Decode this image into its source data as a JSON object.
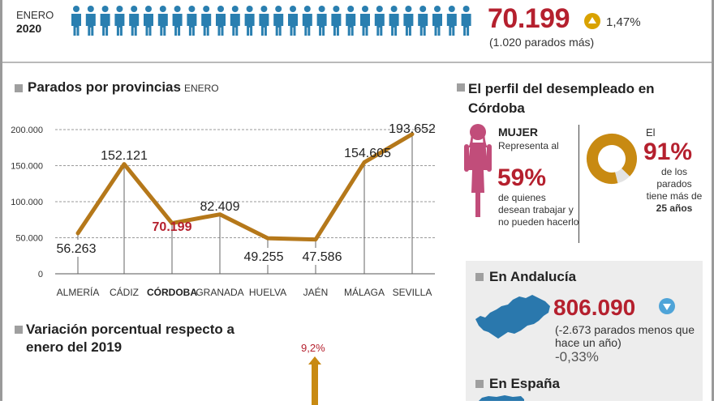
{
  "header": {
    "month": "ENERO",
    "year": "2020",
    "total": "70.199",
    "pct_change": "1,47%",
    "more_unemployed": "(1.020 parados más)"
  },
  "provinces_section": {
    "title": "Parados por provincias",
    "subtitle": "ENERO"
  },
  "chart_data": {
    "type": "line",
    "title": "Parados por provincias",
    "subtitle": "ENERO",
    "categories": [
      "ALMERÍA",
      "CÁDIZ",
      "CÓRDOBA",
      "GRANADA",
      "HUELVA",
      "JAÉN",
      "MÁLAGA",
      "SEVILLA"
    ],
    "values": [
      56263,
      152121,
      70199,
      82409,
      49255,
      47586,
      154605,
      193652
    ],
    "value_labels": [
      "56.263",
      "152.121",
      "70.199",
      "82.409",
      "49.255",
      "47.586",
      "154.605",
      "193.652"
    ],
    "highlight": "CÓRDOBA",
    "y_ticks": [
      "0",
      "50.000",
      "100.000",
      "150.000",
      "200.000"
    ],
    "ylim": [
      0,
      200000
    ],
    "line_color": "#b5781a",
    "highlight_color": "#b5202e",
    "grid": true
  },
  "variation_section": {
    "title": "Variación porcentual respecto a enero del 2019",
    "value_label": "9,2%"
  },
  "profile_section": {
    "title": "El perfil del desempleado en Córdoba",
    "woman_label": "MUJER",
    "woman_text1": "Representa al",
    "woman_pct": "59%",
    "woman_text2": "de quienes desean trabajar y no pueden hacerlo",
    "age_prefix": "El",
    "age_pct": "91%",
    "age_text": "de los parados tiene más de",
    "age_bold": "25 años",
    "age_pct_value": 91
  },
  "andalucia": {
    "title": "En Andalucía",
    "value": "806.090",
    "less_text": "(-2.673 parados menos que hace un año)",
    "pct": "-0,33%"
  },
  "espana": {
    "title": "En España"
  },
  "colors": {
    "accent_red": "#b5202e",
    "line_gold": "#b5781a",
    "people_blue": "#2a7fb0",
    "up_gold": "#d9a200",
    "down_blue": "#4fa4d8",
    "woman_pink": "#c14d7a"
  }
}
